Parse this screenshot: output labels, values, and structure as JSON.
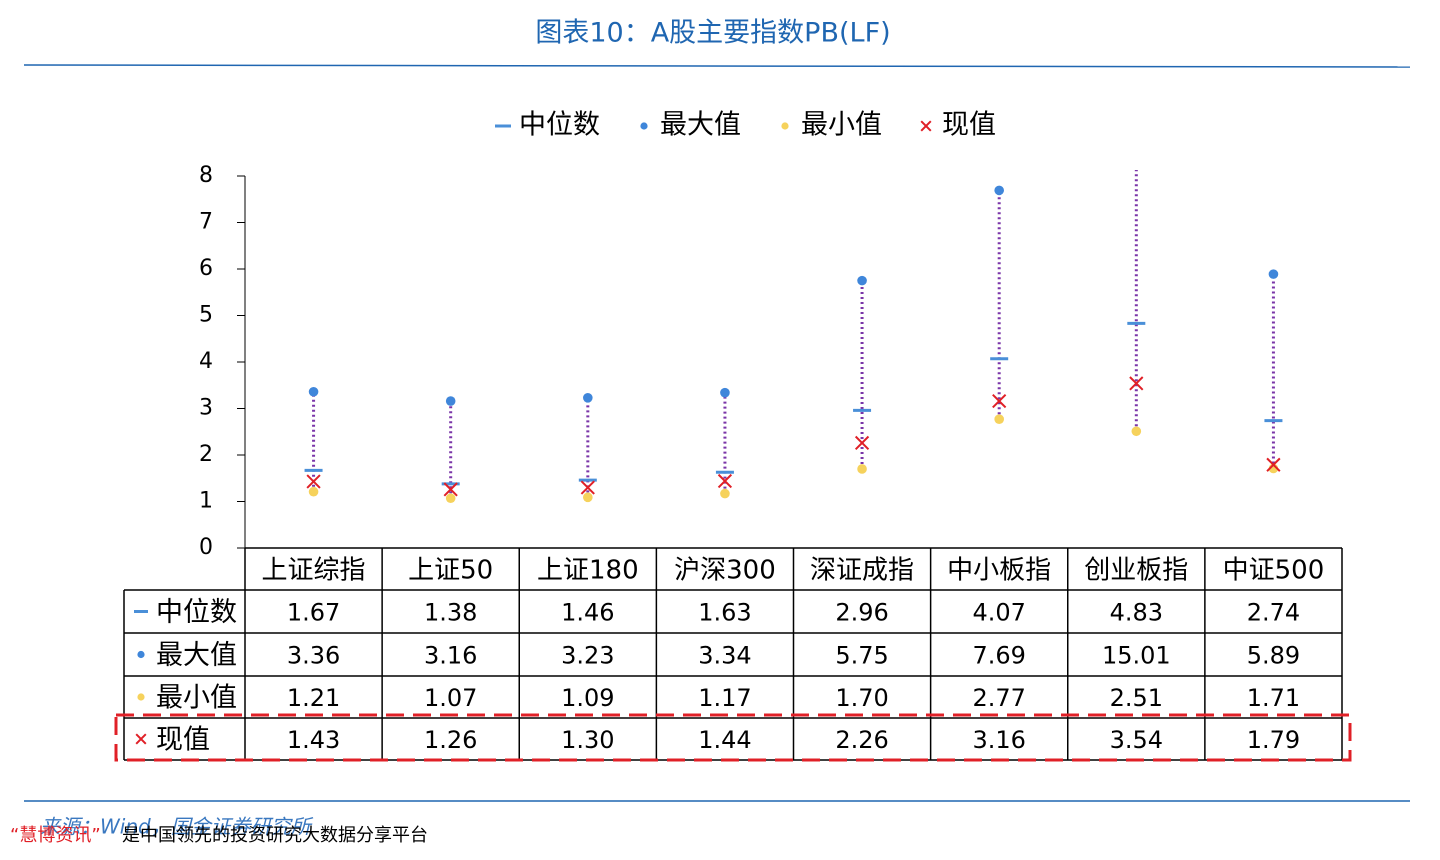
{
  "chart_data": {
    "type": "range",
    "title": "图表10：A股主要指数PB(LF)",
    "categories": [
      "上证综指",
      "上证50",
      "上证180",
      "沪深300",
      "深证成指",
      "中小板指",
      "创业板指",
      "中证500"
    ],
    "series": [
      {
        "name": "中位数",
        "marker": "dash",
        "color": "#4a8fd8",
        "values": [
          1.67,
          1.38,
          1.46,
          1.63,
          2.96,
          4.07,
          4.83,
          2.74
        ],
        "value_labels": [
          "1.67",
          "1.38",
          "1.46",
          "1.63",
          "2.96",
          "4.07",
          "4.83",
          "2.74"
        ]
      },
      {
        "name": "最大值",
        "marker": "dot",
        "color": "#3f86da",
        "values": [
          3.36,
          3.16,
          3.23,
          3.34,
          5.75,
          7.69,
          15.01,
          5.89
        ],
        "value_labels": [
          "3.36",
          "3.16",
          "3.23",
          "3.34",
          "5.75",
          "7.69",
          "15.01",
          "5.89"
        ]
      },
      {
        "name": "最小值",
        "marker": "dot",
        "color": "#f6d25c",
        "values": [
          1.21,
          1.07,
          1.09,
          1.17,
          1.7,
          2.77,
          2.51,
          1.71
        ],
        "value_labels": [
          "1.21",
          "1.07",
          "1.09",
          "1.17",
          "1.70",
          "2.77",
          "2.51",
          "1.71"
        ]
      },
      {
        "name": "现值",
        "marker": "cross",
        "color": "#e02027",
        "values": [
          1.43,
          1.26,
          1.3,
          1.44,
          2.26,
          3.16,
          3.54,
          1.79
        ],
        "value_labels": [
          "1.43",
          "1.26",
          "1.30",
          "1.44",
          "2.26",
          "3.16",
          "3.54",
          "1.79"
        ]
      }
    ],
    "range_color": "#7a35a8",
    "highlight_color": "#e02027",
    "ylim": [
      0,
      8
    ],
    "yticks": [
      0,
      1,
      2,
      3,
      4,
      5,
      6,
      7,
      8
    ],
    "source": "来源：Wind，国金证券研究所"
  },
  "footer": {
    "brand": "“慧博资讯”",
    "text": "是中国领先的投资研究大数据分享平台"
  }
}
